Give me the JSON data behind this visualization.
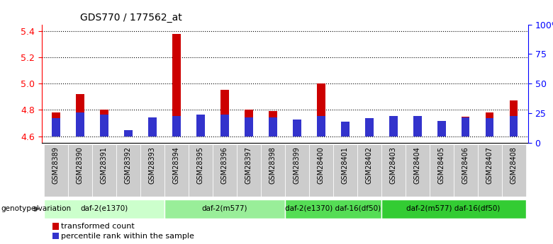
{
  "title": "GDS770 / 177562_at",
  "samples": [
    "GSM28389",
    "GSM28390",
    "GSM28391",
    "GSM28392",
    "GSM28393",
    "GSM28394",
    "GSM28395",
    "GSM28396",
    "GSM28397",
    "GSM28398",
    "GSM28399",
    "GSM28400",
    "GSM28401",
    "GSM28402",
    "GSM28403",
    "GSM28404",
    "GSM28405",
    "GSM28406",
    "GSM28407",
    "GSM28408"
  ],
  "transformed_count": [
    4.78,
    4.92,
    4.8,
    4.6,
    4.73,
    5.38,
    4.75,
    4.95,
    4.8,
    4.79,
    4.69,
    5.0,
    4.65,
    4.71,
    4.75,
    4.75,
    4.67,
    4.75,
    4.78,
    4.87
  ],
  "percentile_rank": [
    15,
    20,
    18,
    5,
    16,
    17,
    18,
    18,
    16,
    16,
    14,
    17,
    12,
    15,
    17,
    17,
    13,
    16,
    15,
    17
  ],
  "ylim_left": [
    4.55,
    5.45
  ],
  "ylim_right": [
    0,
    100
  ],
  "yticks_left": [
    4.6,
    4.8,
    5.0,
    5.2,
    5.4
  ],
  "yticks_right": [
    0,
    25,
    50,
    75,
    100
  ],
  "ytick_labels_right": [
    "0",
    "25",
    "50",
    "75",
    "100%"
  ],
  "bar_baseline": 4.6,
  "red_color": "#cc0000",
  "blue_color": "#3333cc",
  "groups": [
    {
      "label": "daf-2(e1370)",
      "start": 0,
      "end": 5,
      "color": "#ccffcc"
    },
    {
      "label": "daf-2(m577)",
      "start": 5,
      "end": 10,
      "color": "#99ee99"
    },
    {
      "label": "daf-2(e1370) daf-16(df50)",
      "start": 10,
      "end": 14,
      "color": "#55dd55"
    },
    {
      "label": "daf-2(m577) daf-16(df50)",
      "start": 14,
      "end": 20,
      "color": "#33cc33"
    }
  ],
  "xlabel_genotype": "genotype/variation",
  "legend_red": "transformed count",
  "legend_blue": "percentile rank within the sample",
  "bar_width": 0.35,
  "blue_bar_width": 0.35
}
